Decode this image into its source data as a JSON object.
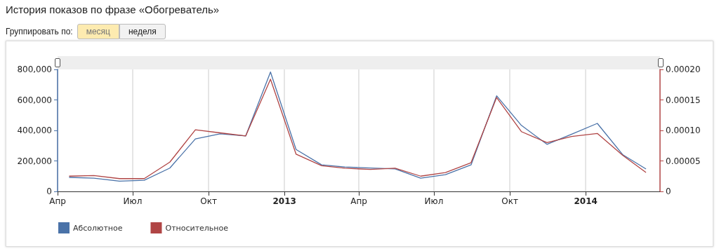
{
  "chart_data": {
    "type": "line",
    "title": "История показов по фразе «Обогреватель»",
    "annotations": [
      "Группировать по:",
      "месяц",
      "неделя"
    ],
    "x": [
      "2012-04-15",
      "2012-05-15",
      "2012-06-15",
      "2012-07-15",
      "2012-08-15",
      "2012-09-15",
      "2012-10-15",
      "2012-11-15",
      "2012-12-15",
      "2013-01-15",
      "2013-02-15",
      "2013-03-15",
      "2013-04-15",
      "2013-05-15",
      "2013-06-15",
      "2013-07-15",
      "2013-08-15",
      "2013-09-15",
      "2013-10-15",
      "2013-11-15",
      "2013-12-15",
      "2014-01-15",
      "2014-02-15",
      "2014-03-15"
    ],
    "series": [
      {
        "name": "Абсолютное",
        "color": "#4a72a8",
        "values": [
          92000,
          87000,
          67000,
          73000,
          153000,
          344000,
          378000,
          364000,
          783000,
          275000,
          174000,
          160000,
          153000,
          148000,
          87000,
          110000,
          174000,
          627000,
          433000,
          309000,
          375000,
          446000,
          240000,
          147000
        ]
      },
      {
        "name": "Относительное",
        "color": "#b04545",
        "axis": "y2",
        "values": [
          2.5e-05,
          2.6e-05,
          2.1e-05,
          2.1e-05,
          4.8e-05,
          0.000101,
          9.6e-05,
          9.1e-05,
          0.000184,
          6.1e-05,
          4.2e-05,
          3.8e-05,
          3.6e-05,
          3.8e-05,
          2.5e-05,
          3.1e-05,
          4.7e-05,
          0.000154,
          9.8e-05,
          8e-05,
          9e-05,
          9.5e-05,
          5.9e-05,
          3.1e-05
        ]
      }
    ],
    "xlim": [
      "2012-04-01",
      "2014-04-01"
    ],
    "xticks": [
      {
        "value": "2012-04-01",
        "label": "Апр"
      },
      {
        "value": "2012-07-01",
        "label": "Июл"
      },
      {
        "value": "2012-10-01",
        "label": "Окт"
      },
      {
        "value": "2013-01-01",
        "label": "2013"
      },
      {
        "value": "2013-04-01",
        "label": "Апр"
      },
      {
        "value": "2013-07-01",
        "label": "Июл"
      },
      {
        "value": "2013-10-01",
        "label": "Окт"
      },
      {
        "value": "2014-01-01",
        "label": "2014"
      }
    ],
    "ylim": [
      0,
      800000
    ],
    "yticks": [
      0,
      {
        "value": 200000,
        "label": "200,000"
      },
      {
        "value": 400000,
        "label": "400,000"
      },
      {
        "value": 600000,
        "label": "600,000"
      },
      {
        "value": 800000,
        "label": "800,000"
      }
    ],
    "y2lim": [
      0,
      0.0002
    ],
    "y2ticks": [
      0,
      {
        "value": 5e-05,
        "label": "0.00005"
      },
      {
        "value": 0.0001,
        "label": "0.00010"
      },
      {
        "value": 0.00015,
        "label": "0.00015"
      },
      {
        "value": 0.0002,
        "label": "0.00020"
      }
    ],
    "grid": "x",
    "legend": "bottom left",
    "marker": "none",
    "line_style": "solid"
  }
}
